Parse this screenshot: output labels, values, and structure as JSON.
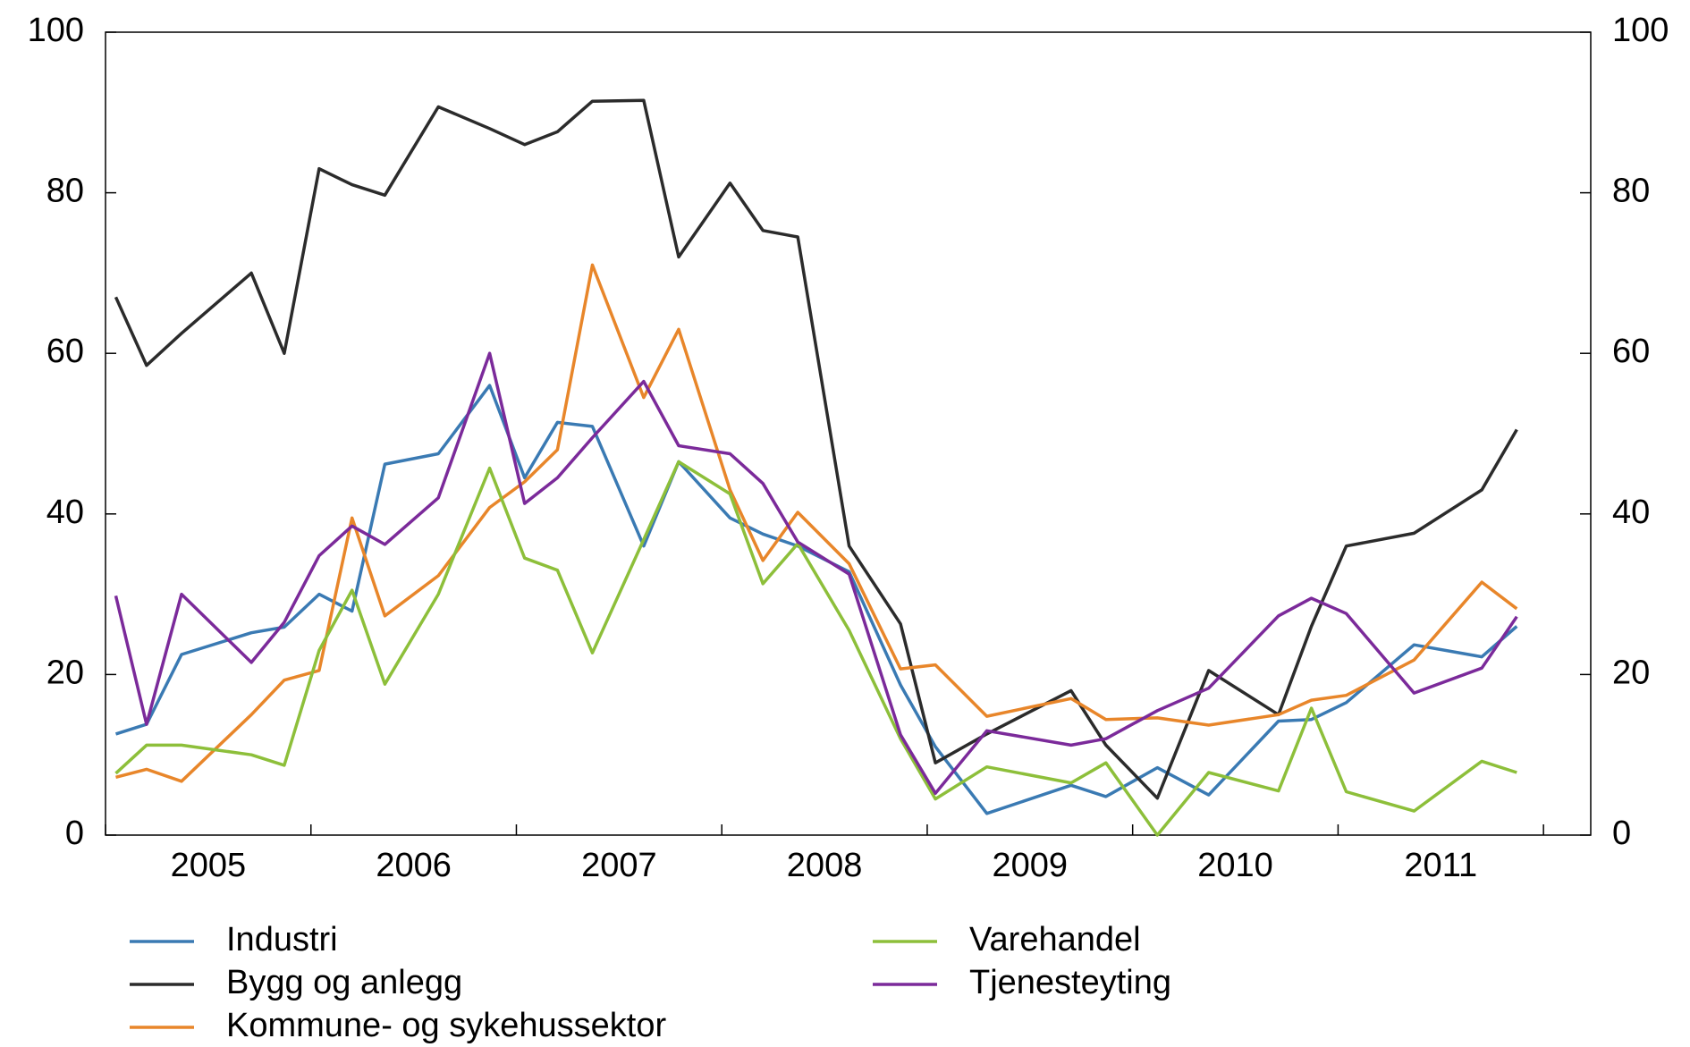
{
  "chart_data": {
    "type": "line",
    "x": [
      2005.05,
      2005.2,
      2005.37,
      2005.71,
      2005.87,
      2006.04,
      2006.2,
      2006.36,
      2006.62,
      2006.87,
      2007.04,
      2007.2,
      2007.37,
      2007.62,
      2007.79,
      2008.04,
      2008.2,
      2008.37,
      2008.62,
      2008.87,
      2009.04,
      2009.29,
      2009.7,
      2009.87,
      2010.12,
      2010.37,
      2010.71,
      2010.87,
      2011.04,
      2011.37,
      2011.7,
      2011.87
    ],
    "series": [
      {
        "name": "Industri",
        "color": "#3a7ab3",
        "values": [
          12.6,
          13.8,
          22.5,
          25.2,
          25.9,
          30,
          27.9,
          46.2,
          47.5,
          56,
          44.5,
          51.4,
          50.9,
          36,
          46.5,
          39.5,
          37.5,
          36,
          32.8,
          18.7,
          11,
          2.7,
          6.2,
          4.8,
          8.4,
          5,
          14.2,
          14.4,
          16.5,
          23.7,
          22.2,
          26
        ]
      },
      {
        "name": "Bygg og anlegg",
        "color": "#2b2b2b",
        "values": [
          67,
          58.5,
          62.5,
          70,
          60,
          83,
          81,
          79.7,
          90.7,
          88,
          86,
          87.6,
          91.4,
          91.5,
          72,
          81.2,
          75.3,
          74.5,
          36,
          26.3,
          9,
          12.6,
          18,
          11.2,
          4.6,
          20.5,
          15,
          26,
          36,
          37.6,
          43,
          50.5
        ]
      },
      {
        "name": "Kommune- og sykehussektor",
        "color": "#e8862a",
        "values": [
          7.2,
          8.2,
          6.7,
          15,
          19.3,
          20.5,
          39.5,
          27.3,
          32.3,
          40.8,
          44,
          48,
          71,
          54.5,
          63,
          43,
          34.2,
          40.2,
          33.8,
          20.7,
          21.2,
          14.8,
          17,
          14.4,
          14.6,
          13.7,
          15,
          16.8,
          17.4,
          21.8,
          31.5,
          28.2
        ]
      },
      {
        "name": "Varehandel",
        "color": "#8dbf3a",
        "values": [
          7.7,
          11.2,
          11.2,
          10,
          8.7,
          23,
          30.5,
          18.8,
          30,
          45.7,
          34.5,
          33,
          22.7,
          36.8,
          46.5,
          42.5,
          31.3,
          36.3,
          25.5,
          12,
          4.5,
          8.5,
          6.5,
          9,
          0,
          7.8,
          5.5,
          15.8,
          5.4,
          3,
          9.2,
          7.8
        ]
      },
      {
        "name": "Tjenesteyting",
        "color": "#7b2a9a",
        "values": [
          29.8,
          13.8,
          30,
          21.5,
          26.5,
          34.8,
          38.5,
          36.2,
          42,
          60,
          41.3,
          44.5,
          49.5,
          56.5,
          48.5,
          47.5,
          43.8,
          36.5,
          32.5,
          12.5,
          5.2,
          13,
          11.2,
          12,
          15.5,
          18.3,
          27.3,
          29.5,
          27.6,
          17.7,
          20.8,
          27.2
        ]
      }
    ],
    "xlim": [
      2005,
      2012.23
    ],
    "xticks": [
      {
        "value": 2005.5,
        "label": "2005"
      },
      {
        "value": 2006.5,
        "label": "2006"
      },
      {
        "value": 2007.5,
        "label": "2007"
      },
      {
        "value": 2008.5,
        "label": "2008"
      },
      {
        "value": 2009.5,
        "label": "2009"
      },
      {
        "value": 2010.5,
        "label": "2010"
      },
      {
        "value": 2011.5,
        "label": "2011"
      }
    ],
    "ylim": [
      0,
      100
    ],
    "yticks": [
      0,
      20,
      40,
      60,
      80,
      100
    ],
    "y2lim": [
      0,
      100
    ],
    "y2ticks": [
      0,
      20,
      40,
      60,
      80,
      100
    ]
  }
}
